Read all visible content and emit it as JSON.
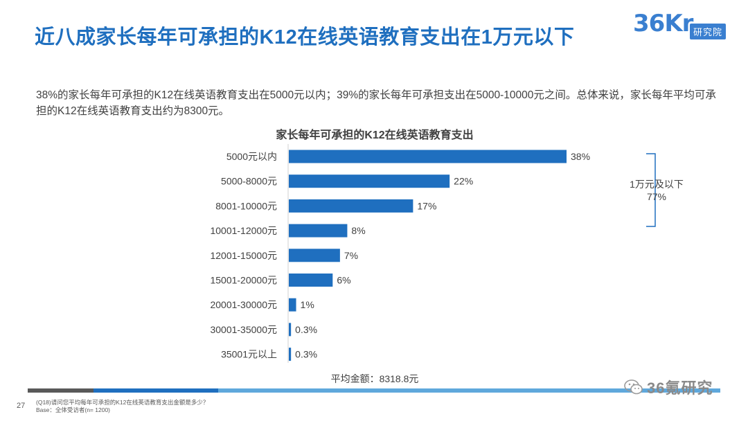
{
  "header": {
    "title": "近八成家长每年可承担的K12在线英语教育支出在1万元以下",
    "logo_main": "36Kr",
    "logo_badge": "研究院"
  },
  "summary_text": "38%的家长每年可承担的K12在线英语教育支出在5000元以内；39%的家长每年可承担支出在5000-10000元之间。总体来说，家长每年平均可承担的K12在线英语教育支出约为8300元。",
  "chart_data": {
    "type": "bar",
    "orientation": "horizontal",
    "title": "家长每年可承担的K12在线英语教育支出",
    "categories": [
      "5000元以内",
      "5000-8000元",
      "8001-10000元",
      "10001-12000元",
      "12001-15000元",
      "15001-20000元",
      "20001-30000元",
      "30001-35000元",
      "35001元以上"
    ],
    "values": [
      38,
      22,
      17,
      8,
      7,
      6,
      1,
      0.3,
      0.3
    ],
    "value_labels": [
      "38%",
      "22%",
      "17%",
      "8%",
      "7%",
      "6%",
      "1%",
      "0.3%",
      "0.3%"
    ],
    "unit": "%",
    "xlim": [
      0,
      40
    ],
    "bar_color": "#1f6fbf",
    "annotation": {
      "line1": "1万元及以下",
      "line2": "77%",
      "covers_categories": [
        "5000元以内",
        "5000-8000元",
        "8001-10000元"
      ]
    },
    "footnote": "平均金额：8318.8元"
  },
  "footer": {
    "page_number": "27",
    "question": "(Q18)请问您平均每年可承担的K12在线英语教育支出金额是多少？",
    "base": "Base：全体受访者(n= 1200)",
    "watermark": "36氪研究"
  },
  "colors": {
    "title_blue": "#1f6fbf",
    "bar_blue": "#1f6fbf",
    "text_gray": "#404040"
  }
}
